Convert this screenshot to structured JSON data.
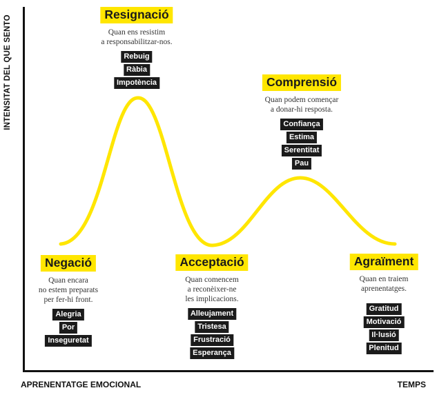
{
  "axes": {
    "y_label": "INTENSITAT DEL QUE SENTO",
    "x_label_left": "APRENENTATGE EMOCIONAL",
    "x_label_right": "TEMPS"
  },
  "colors": {
    "accent": "#ffe600",
    "tag_bg": "#1b1b1b",
    "axis": "#111111"
  },
  "stages": [
    {
      "title": "Resignació",
      "description": [
        "Quan ens resistim",
        "a responsabilitzar-nos."
      ],
      "emotions": [
        "Rebuig",
        "Ràbia",
        "Impotència"
      ]
    },
    {
      "title": "Comprensió",
      "description": [
        "Quan podem començar",
        "a donar-hi resposta."
      ],
      "emotions": [
        "Confiança",
        "Estima",
        "Serentitat",
        "Pau"
      ]
    },
    {
      "title": "Negació",
      "description": [
        "Quan encara",
        "no estem preparats",
        "per fer-hi front."
      ],
      "emotions": [
        "Alegria",
        "Por",
        "Inseguretat"
      ]
    },
    {
      "title": "Acceptació",
      "description": [
        "Quan comencem",
        "a reconèixer-ne",
        "les implicacions."
      ],
      "emotions": [
        "Alleujament",
        "Tristesa",
        "Frustració",
        "Esperança"
      ]
    },
    {
      "title": "Agraïment",
      "description": [
        "Quan en traiem",
        "aprenentatges."
      ],
      "emotions": [
        "Gratitud",
        "Motivació",
        "Il·lusió",
        "Plenitud"
      ]
    }
  ]
}
